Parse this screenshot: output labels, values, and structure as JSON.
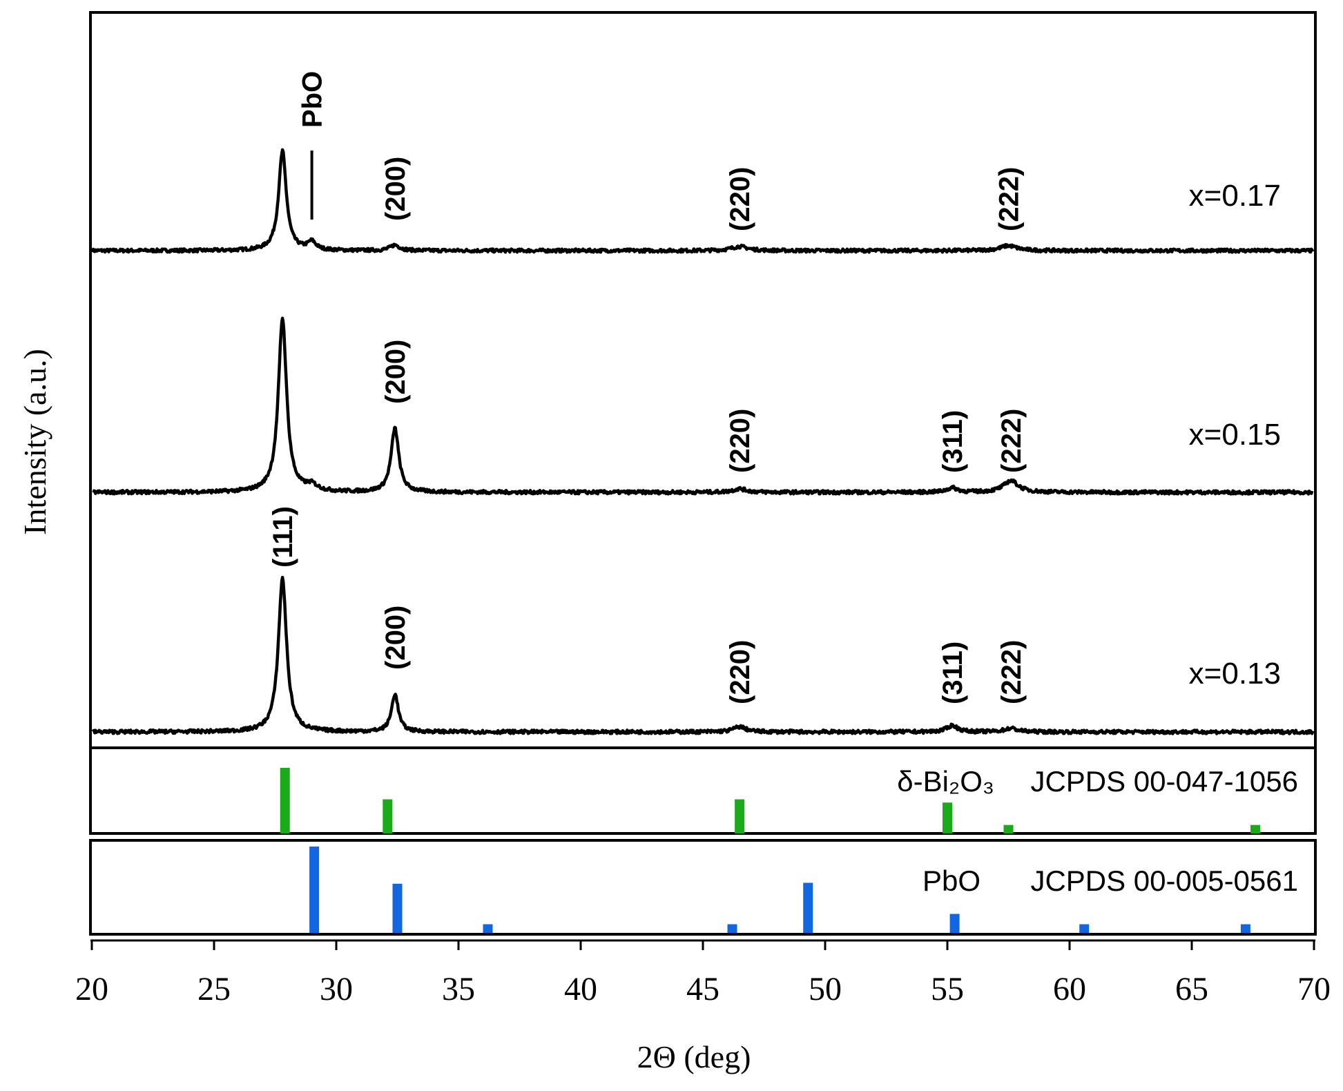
{
  "chart_data": {
    "type": "line",
    "xlabel": "2Θ (deg)",
    "ylabel": "Intensity (a.u.)",
    "xlim": [
      20,
      70
    ],
    "x_ticks": [
      "20",
      "25",
      "30",
      "35",
      "40",
      "45",
      "50",
      "55",
      "60",
      "65",
      "70"
    ],
    "grid": false,
    "series": [
      {
        "name": "x=0.17",
        "baseline_rel": 0.0,
        "peaks": [
          {
            "x": 27.8,
            "height": 0.36,
            "width": 0.28
          },
          {
            "x": 29.0,
            "height": 0.03,
            "width": 0.3
          },
          {
            "x": 32.4,
            "height": 0.02,
            "width": 0.35
          },
          {
            "x": 46.5,
            "height": 0.015,
            "width": 0.6
          },
          {
            "x": 57.5,
            "height": 0.018,
            "width": 0.6
          }
        ],
        "labels": [
          {
            "text": "PbO",
            "x": 29.0,
            "bold": true
          },
          {
            "text": "(200)",
            "x": 32.4
          },
          {
            "text": "(220)",
            "x": 46.5
          },
          {
            "text": "(222)",
            "x": 57.5
          }
        ]
      },
      {
        "name": "x=0.15",
        "baseline_rel": 0.0,
        "peaks": [
          {
            "x": 27.8,
            "height": 0.6,
            "width": 0.3
          },
          {
            "x": 29.0,
            "height": 0.02,
            "width": 0.4
          },
          {
            "x": 32.4,
            "height": 0.22,
            "width": 0.28
          },
          {
            "x": 46.5,
            "height": 0.012,
            "width": 0.5
          },
          {
            "x": 55.2,
            "height": 0.015,
            "width": 0.4
          },
          {
            "x": 57.6,
            "height": 0.04,
            "width": 0.55
          }
        ],
        "labels": [
          {
            "text": "(200)",
            "x": 32.4
          },
          {
            "text": "(220)",
            "x": 46.5
          },
          {
            "text": "(311)",
            "x": 55.2
          },
          {
            "text": "(222)",
            "x": 57.6
          }
        ]
      },
      {
        "name": "x=0.13",
        "baseline_rel": 0.0,
        "peaks": [
          {
            "x": 27.8,
            "height": 0.53,
            "width": 0.3
          },
          {
            "x": 32.4,
            "height": 0.13,
            "width": 0.25
          },
          {
            "x": 46.5,
            "height": 0.018,
            "width": 0.45
          },
          {
            "x": 55.2,
            "height": 0.022,
            "width": 0.4
          },
          {
            "x": 57.6,
            "height": 0.012,
            "width": 0.5
          }
        ],
        "labels": [
          {
            "text": "(111)",
            "x": 27.8
          },
          {
            "text": "(200)",
            "x": 32.4
          },
          {
            "text": "(220)",
            "x": 46.5
          },
          {
            "text": "(311)",
            "x": 55.2
          },
          {
            "text": "(222)",
            "x": 57.6
          }
        ]
      }
    ],
    "references": [
      {
        "phase": "δ-Bi₂O₃",
        "card": "JCPDS 00-047-1056",
        "color": "#1aab1a",
        "bars": [
          {
            "x": 27.9,
            "rel": 100
          },
          {
            "x": 32.1,
            "rel": 52
          },
          {
            "x": 46.5,
            "rel": 52
          },
          {
            "x": 55.0,
            "rel": 47
          },
          {
            "x": 57.5,
            "rel": 13
          },
          {
            "x": 67.6,
            "rel": 13
          }
        ]
      },
      {
        "phase": "PbO",
        "card": "JCPDS 00-005-0561",
        "color": "#1266e0",
        "bars": [
          {
            "x": 29.1,
            "rel": 100
          },
          {
            "x": 32.5,
            "rel": 57
          },
          {
            "x": 36.2,
            "rel": 10
          },
          {
            "x": 46.2,
            "rel": 10
          },
          {
            "x": 49.3,
            "rel": 58
          },
          {
            "x": 55.3,
            "rel": 22
          },
          {
            "x": 60.6,
            "rel": 10
          },
          {
            "x": 67.2,
            "rel": 10
          }
        ]
      }
    ]
  }
}
